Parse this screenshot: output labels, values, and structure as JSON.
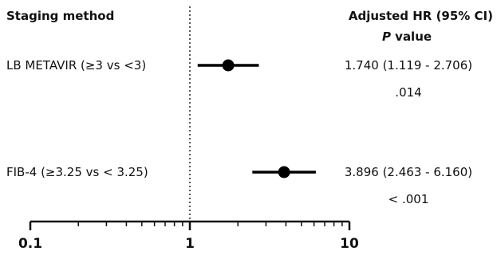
{
  "headers": {
    "left": "Staging method",
    "right_line1": "Adjusted HR (95% CI)",
    "right_line2_italic": "P",
    "right_line2_rest": " value"
  },
  "chart_data": {
    "type": "forest",
    "x_scale": "log10",
    "xlim": [
      0.1,
      10
    ],
    "reference_line": 1,
    "ticks": [
      {
        "value": 0.1,
        "label": "0.1"
      },
      {
        "value": 1,
        "label": "1"
      },
      {
        "value": 10,
        "label": "10"
      }
    ],
    "rows": [
      {
        "label": "LB METAVIR (≥3 vs <3)",
        "hr": 1.74,
        "lo": 1.119,
        "hi": 2.706,
        "ci_text": "1.740 (1.119 - 2.706)",
        "p_text": ".014"
      },
      {
        "label": "FIB-4 (≥3.25 vs < 3.25)",
        "hr": 3.896,
        "lo": 2.463,
        "hi": 6.16,
        "ci_text": "3.896 (2.463 - 6.160)",
        "p_text": "< .001"
      }
    ]
  }
}
